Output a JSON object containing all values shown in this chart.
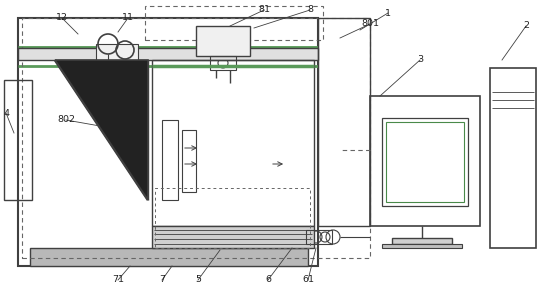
{
  "figure_size": [
    5.48,
    2.88
  ],
  "dpi": 100,
  "bg_color": "#ffffff",
  "line_color": "#404040",
  "green_color": "#5a9a5a",
  "gray_color": "#aaaaaa"
}
